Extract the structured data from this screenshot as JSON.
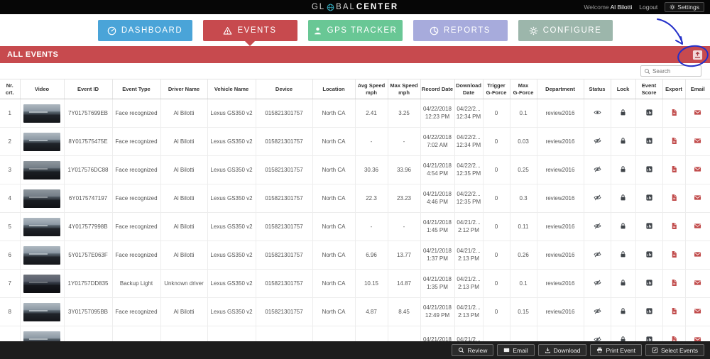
{
  "header": {
    "logo_prefix": "GL",
    "logo_mid": "BAL",
    "logo_bold": "CENTER",
    "welcome": "Welcome",
    "user": "Al Bilotti",
    "logout": "Logout",
    "settings": "Settings"
  },
  "nav": {
    "tabs": [
      {
        "id": "dashboard",
        "label": "DASHBOARD",
        "icon": "gauge-icon",
        "color": "#4aa4d8",
        "active": false
      },
      {
        "id": "events",
        "label": "EVENTS",
        "icon": "warning-icon",
        "color": "#c74a4e",
        "active": true
      },
      {
        "id": "gps-tracker",
        "label": "GPS TRACKER",
        "icon": "person-icon",
        "color": "#69c795",
        "active": false
      },
      {
        "id": "reports",
        "label": "REPORTS",
        "icon": "pie-icon",
        "color": "#a7abdc",
        "active": false
      },
      {
        "id": "configure",
        "label": "CONFIGURE",
        "icon": "gear-icon",
        "color": "#9cb6ab",
        "active": false
      }
    ]
  },
  "section": {
    "title": "ALL EVENTS",
    "corner_icon": "export-events-icon"
  },
  "search": {
    "placeholder": "Search"
  },
  "table": {
    "columns": [
      "Nr.\ncrt.",
      "Video",
      "Event ID",
      "Event Type",
      "Driver Name",
      "Vehicle Name",
      "Device",
      "Location",
      "Avg Speed\nmph",
      "Max Speed\nmph",
      "Record Date",
      "Download\nDate",
      "Trigger\nG-Force",
      "Max\nG-Force",
      "Department",
      "Status",
      "Lock",
      "Event\nScore",
      "Export",
      "Email"
    ],
    "rows": [
      {
        "nr": "1",
        "event_id": "7Y01757699EB",
        "event_type": "Face recognized",
        "driver": "Al Bilotti",
        "vehicle": "Lexus GS350 v2",
        "device": "015821301757",
        "location": "North CA",
        "avg_speed": "2.41",
        "max_speed": "3.25",
        "record_date": "04/22/2018",
        "record_time": "12:23 PM",
        "download_date": "04/22/2...",
        "download_time": "12:34 PM",
        "trigger_g": "0",
        "max_g": "0.1",
        "department": "review2016",
        "status": "visible",
        "thumb": 0
      },
      {
        "nr": "2",
        "event_id": "8Y017575475E",
        "event_type": "Face recognized",
        "driver": "Al Bilotti",
        "vehicle": "Lexus GS350 v2",
        "device": "015821301757",
        "location": "North CA",
        "avg_speed": "-",
        "max_speed": "-",
        "record_date": "04/22/2018",
        "record_time": "7:02 AM",
        "download_date": "04/22/2...",
        "download_time": "12:34 PM",
        "trigger_g": "0",
        "max_g": "0.03",
        "department": "review2016",
        "status": "hidden",
        "thumb": 0
      },
      {
        "nr": "3",
        "event_id": "1Y017576DC88",
        "event_type": "Face recognized",
        "driver": "Al Bilotti",
        "vehicle": "Lexus GS350 v2",
        "device": "015821301757",
        "location": "North CA",
        "avg_speed": "30.36",
        "max_speed": "33.96",
        "record_date": "04/21/2018",
        "record_time": "4:54 PM",
        "download_date": "04/22/2...",
        "download_time": "12:35 PM",
        "trigger_g": "0",
        "max_g": "0.25",
        "department": "review2016",
        "status": "hidden",
        "thumb": 1
      },
      {
        "nr": "4",
        "event_id": "6Y0175747197",
        "event_type": "Face recognized",
        "driver": "Al Bilotti",
        "vehicle": "Lexus GS350 v2",
        "device": "015821301757",
        "location": "North CA",
        "avg_speed": "22.3",
        "max_speed": "23.23",
        "record_date": "04/21/2018",
        "record_time": "4:46 PM",
        "download_date": "04/22/2...",
        "download_time": "12:35 PM",
        "trigger_g": "0",
        "max_g": "0.3",
        "department": "review2016",
        "status": "hidden",
        "thumb": 1
      },
      {
        "nr": "5",
        "event_id": "4Y017577998B",
        "event_type": "Face recognized",
        "driver": "Al Bilotti",
        "vehicle": "Lexus GS350 v2",
        "device": "015821301757",
        "location": "North CA",
        "avg_speed": "-",
        "max_speed": "-",
        "record_date": "04/21/2018",
        "record_time": "1:45 PM",
        "download_date": "04/21/2...",
        "download_time": "2:12 PM",
        "trigger_g": "0",
        "max_g": "0.11",
        "department": "review2016",
        "status": "hidden",
        "thumb": 0
      },
      {
        "nr": "6",
        "event_id": "5Y01757E063F",
        "event_type": "Face recognized",
        "driver": "Al Bilotti",
        "vehicle": "Lexus GS350 v2",
        "device": "015821301757",
        "location": "North CA",
        "avg_speed": "6.96",
        "max_speed": "13.77",
        "record_date": "04/21/2018",
        "record_time": "1:37 PM",
        "download_date": "04/21/2...",
        "download_time": "2:13 PM",
        "trigger_g": "0",
        "max_g": "0.26",
        "department": "review2016",
        "status": "hidden",
        "thumb": 0
      },
      {
        "nr": "7",
        "event_id": "1Y01757DD835",
        "event_type": "Backup Light",
        "driver": "Unknown driver",
        "vehicle": "Lexus GS350 v2",
        "device": "015821301757",
        "location": "North CA",
        "avg_speed": "10.15",
        "max_speed": "14.87",
        "record_date": "04/21/2018",
        "record_time": "1:35 PM",
        "download_date": "04/21/2...",
        "download_time": "2:13 PM",
        "trigger_g": "0",
        "max_g": "0.1",
        "department": "review2016",
        "status": "hidden",
        "thumb": 2
      },
      {
        "nr": "8",
        "event_id": "3Y01757095BB",
        "event_type": "Face recognized",
        "driver": "Al Bilotti",
        "vehicle": "Lexus GS350 v2",
        "device": "015821301757",
        "location": "North CA",
        "avg_speed": "4.87",
        "max_speed": "8.45",
        "record_date": "04/21/2018",
        "record_time": "12:49 PM",
        "download_date": "04/21/2...",
        "download_time": "2:13 PM",
        "trigger_g": "0",
        "max_g": "0.15",
        "department": "review2016",
        "status": "hidden",
        "thumb": 0
      }
    ],
    "partial_row": {
      "nr": "",
      "event_id": "",
      "event_type": "",
      "driver": "",
      "vehicle": "",
      "device": "",
      "location": "",
      "avg_speed": "",
      "max_speed": "",
      "record_date": "04/21/2018",
      "record_time": "",
      "download_date": "04/21/2...",
      "download_time": "",
      "trigger_g": "",
      "max_g": "",
      "department": "",
      "status": "hidden",
      "thumb": 0
    }
  },
  "footer": {
    "buttons": [
      {
        "id": "review",
        "label": "Review",
        "icon": "search-icon"
      },
      {
        "id": "email",
        "label": "Email",
        "icon": "envelope-icon"
      },
      {
        "id": "download",
        "label": "Download",
        "icon": "download-icon"
      },
      {
        "id": "print-event",
        "label": "Print Event",
        "icon": "printer-icon"
      },
      {
        "id": "select-events",
        "label": "Select Events",
        "icon": "checklist-icon"
      }
    ]
  },
  "annotation": {
    "color": "#2430c9"
  }
}
